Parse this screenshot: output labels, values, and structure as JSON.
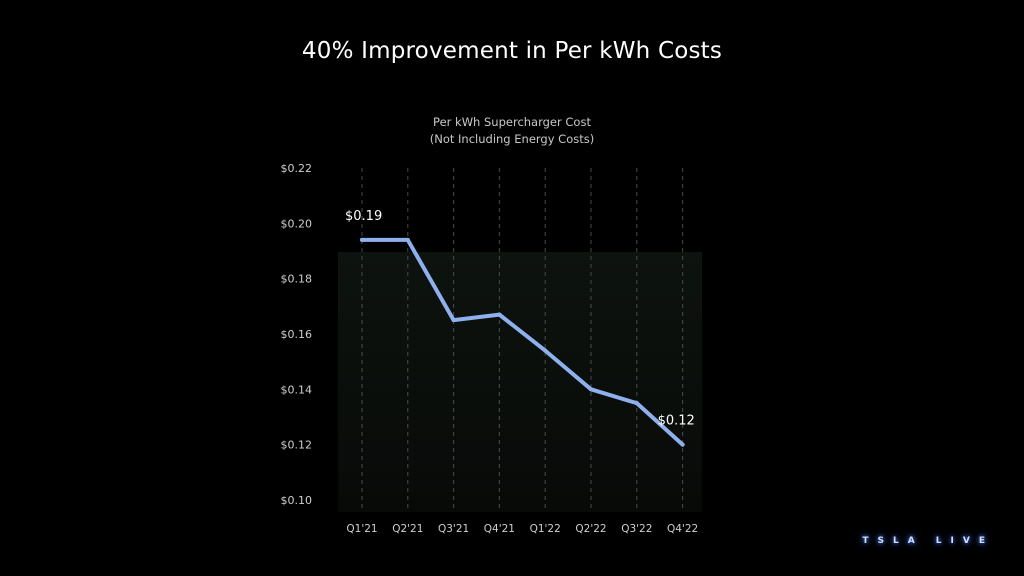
{
  "slide": {
    "title": "40% Improvement in Per kWh Costs"
  },
  "brand": {
    "label": "TSLA LIVE"
  },
  "chart_data": {
    "type": "line",
    "title": "Per kWh Supercharger Cost",
    "subtitle": "(Not Including Energy Costs)",
    "categories": [
      "Q1'21",
      "Q2'21",
      "Q3'21",
      "Q4'21",
      "Q1'22",
      "Q2'22",
      "Q3'22",
      "Q4'22"
    ],
    "series": [
      {
        "name": "Per kWh Supercharger Cost",
        "values": [
          0.194,
          0.194,
          0.165,
          0.167,
          0.154,
          0.14,
          0.135,
          0.12
        ]
      }
    ],
    "annotations": [
      {
        "index": 0,
        "text": "$0.19"
      },
      {
        "index": 7,
        "text": "$0.12"
      }
    ],
    "y_ticks": [
      "$0.22",
      "$0.20",
      "$0.18",
      "$0.16",
      "$0.14",
      "$0.12",
      "$0.10"
    ],
    "ylim": [
      0.1,
      0.22
    ],
    "xlabel": "",
    "ylabel": "",
    "line_color": "#8eb1ee",
    "grid": "vertical-dashed"
  }
}
